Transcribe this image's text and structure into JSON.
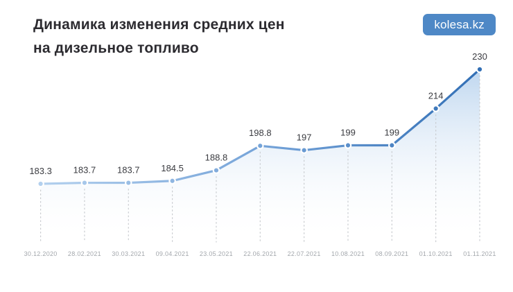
{
  "header": {
    "title_line1": "Динамика изменения средних цен",
    "title_line2": "на дизельное топливо",
    "brand_badge": "kolesa.kz"
  },
  "colors": {
    "background": "#ffffff",
    "title_text": "#2c2b30",
    "badge_bg": "#4e88c6",
    "badge_text": "#ffffff",
    "line_gradient_start": "#b3d0ee",
    "line_gradient_end": "#326fb5",
    "marker_ring": "#ffffff",
    "area_gradient_top": "#a9c9ea",
    "area_gradient_bottom": "#ffffff",
    "value_label": "#3a3b40",
    "date_label": "#a3a7ac",
    "dotted_guide": "#c9ccd0"
  },
  "chart_data": {
    "type": "line",
    "title": "Динамика изменения средних цен на дизельное топливо",
    "x": [
      "30.12.2020",
      "28.02.2021",
      "30.03.2021",
      "09.04.2021",
      "23.05.2021",
      "22.06.2021",
      "22.07.2021",
      "10.08.2021",
      "08.09.2021",
      "01.10.2021",
      "01.11.2021"
    ],
    "values": [
      183.3,
      183.7,
      183.7,
      184.5,
      188.8,
      198.8,
      197,
      199,
      199,
      214,
      230
    ],
    "value_labels": [
      "183.3",
      "183.7",
      "183.7",
      "184.5",
      "188.8",
      "198.8",
      "197",
      "199",
      "199",
      "214",
      "230"
    ],
    "xlabel": "",
    "ylabel": "",
    "ylim": [
      183.3,
      230
    ],
    "grid": false,
    "legend": false,
    "markers": true,
    "area_fill": true,
    "point_guides": "dotted-vertical"
  }
}
